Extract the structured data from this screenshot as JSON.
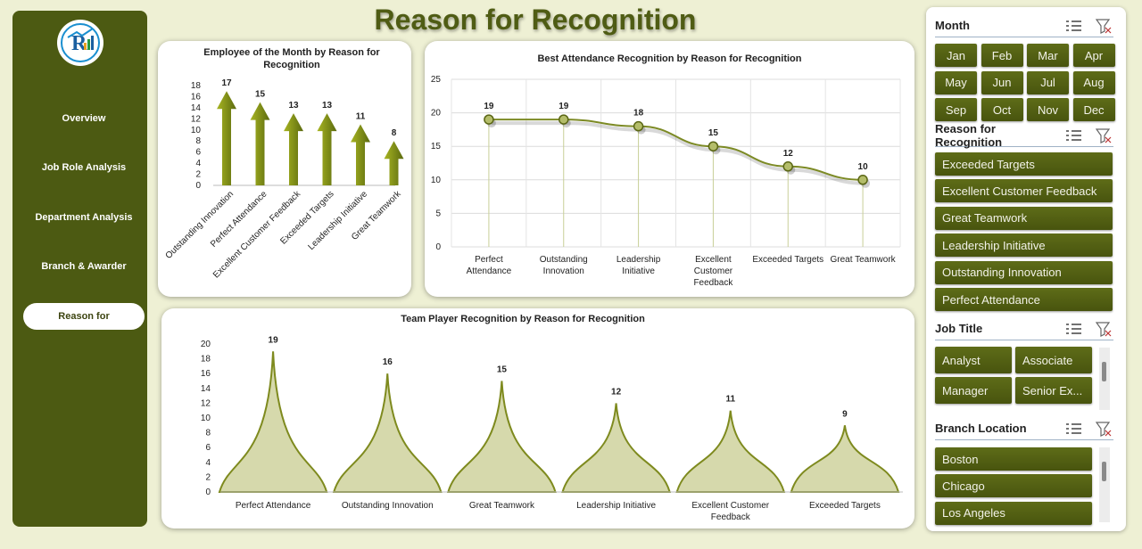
{
  "page_title": "Reason for Recognition",
  "sidebar": {
    "logo": "dashboard-logo",
    "items": [
      {
        "label": "Overview"
      },
      {
        "label": "Job Role Analysis"
      },
      {
        "label": "Department Analysis"
      },
      {
        "label": "Branch & Awarder"
      },
      {
        "label": "Reason for",
        "active": true
      }
    ]
  },
  "colors": {
    "sidebar": "#4c5a12",
    "accent": "#6b7a1a",
    "background": "#eef0d4"
  },
  "chart_data": [
    {
      "type": "bar",
      "title": "Employee of the Month by Reason for Recognition",
      "categories": [
        "Outstanding Innovation",
        "Perfect Attendance",
        "Excellent Customer Feedback",
        "Exceeded Targets",
        "Leadership Initiative",
        "Great Teamwork"
      ],
      "values": [
        17,
        15,
        13,
        13,
        11,
        8
      ],
      "y_ticks": [
        "0",
        "2",
        "4",
        "6",
        "8",
        "10",
        "12",
        "14",
        "16",
        "18"
      ],
      "ylim": [
        0,
        18
      ]
    },
    {
      "type": "line",
      "title": "Best Attendance Recognition by Reason for Recognition",
      "categories": [
        "Perfect Attendance",
        "Outstanding Innovation",
        "Leadership Initiative",
        "Excellent Customer Feedback",
        "Exceeded Targets",
        "Great Teamwork"
      ],
      "values": [
        19,
        19,
        18,
        15,
        12,
        10
      ],
      "y_ticks": [
        "0",
        "5",
        "10",
        "15",
        "20",
        "25"
      ],
      "ylim": [
        0,
        25
      ],
      "grid": true
    },
    {
      "type": "area",
      "title": "Team Player Recognition by Reason for Recognition",
      "categories": [
        "Perfect Attendance",
        "Outstanding Innovation",
        "Great Teamwork",
        "Leadership Initiative",
        "Excellent Customer Feedback",
        "Exceeded Targets"
      ],
      "values": [
        19,
        16,
        15,
        12,
        11,
        9
      ],
      "y_ticks": [
        "0",
        "2",
        "4",
        "6",
        "8",
        "10",
        "12",
        "14",
        "16",
        "18",
        "20"
      ],
      "ylim": [
        0,
        20
      ]
    }
  ],
  "slicers": {
    "month": {
      "title": "Month",
      "items": [
        "Jan",
        "Feb",
        "Mar",
        "Apr",
        "May",
        "Jun",
        "Jul",
        "Aug",
        "Sep",
        "Oct",
        "Nov",
        "Dec"
      ]
    },
    "reason": {
      "title": "Reason for Recognition",
      "items": [
        "Exceeded Targets",
        "Excellent Customer Feedback",
        "Great Teamwork",
        "Leadership Initiative",
        "Outstanding Innovation",
        "Perfect Attendance"
      ]
    },
    "job_title": {
      "title": "Job Title",
      "items": [
        "Analyst",
        "Associate",
        "Manager",
        "Senior Ex..."
      ]
    },
    "branch": {
      "title": "Branch Location",
      "items": [
        "Boston",
        "Chicago",
        "Los Angeles"
      ]
    },
    "icons": {
      "multi_select": "multi-select-icon",
      "clear_filter": "clear-filter-icon"
    }
  }
}
